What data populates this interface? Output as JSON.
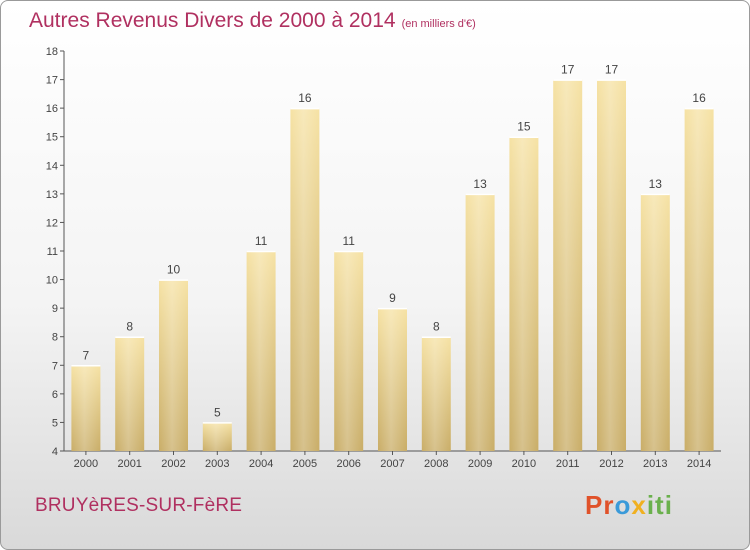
{
  "chart_data": {
    "type": "bar",
    "title": "Autres Revenus Divers de 2000 à 2014",
    "subtitle": "(en milliers d'€)",
    "categories": [
      "2000",
      "2001",
      "2002",
      "2003",
      "2004",
      "2005",
      "2006",
      "2007",
      "2008",
      "2009",
      "2010",
      "2011",
      "2012",
      "2013",
      "2014"
    ],
    "values": [
      7,
      8,
      10,
      5,
      11,
      16,
      11,
      9,
      8,
      13,
      15,
      17,
      17,
      13,
      16
    ],
    "ylim": [
      4,
      18
    ],
    "yticks": [
      4,
      5,
      6,
      7,
      8,
      9,
      10,
      11,
      12,
      13,
      14,
      15,
      16,
      17,
      18
    ],
    "grid": false,
    "data_labels": true,
    "bar_color": "#e9cf85"
  },
  "footer": {
    "commune": "BRUYèRES-SUR-FèRE",
    "logo_parts": [
      "Pr",
      "o",
      "x",
      "iti"
    ]
  },
  "colors": {
    "title": "#b03060",
    "axis": "#555555"
  }
}
